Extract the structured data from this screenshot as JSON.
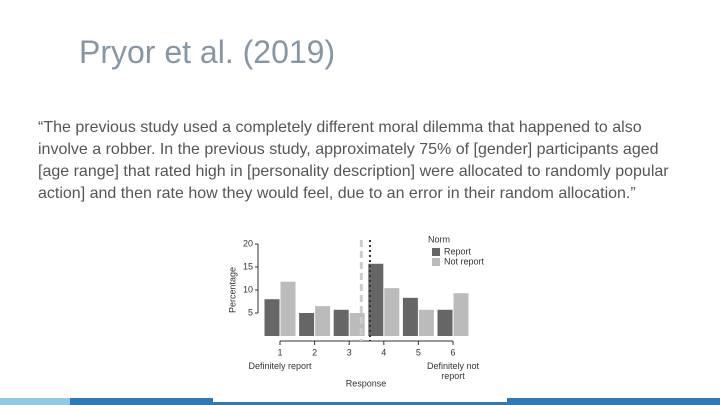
{
  "slide": {
    "title": "Pryor et al. (2019)",
    "quote": "“The previous study used a completely different moral dilemma that happened to also involve a robber. In the previous study, approximately 75% of [gender] participants aged [age range] that rated high in [personality description] were allocated to randomly popular action] and then rate how they would feel, due to an error in their random allocation.”"
  },
  "chart_data": {
    "type": "bar",
    "x_label": "Response",
    "y_label": "Percentage",
    "categories": [
      "1",
      "2",
      "3",
      "4",
      "5",
      "6"
    ],
    "annotations": [
      "Definitely report",
      "Definitely not report"
    ],
    "legend_title": "Norm",
    "series": [
      {
        "name": "Report",
        "color": "#666666",
        "values": [
          8,
          5,
          5.7,
          15.7,
          8.3,
          5.7
        ]
      },
      {
        "name": "Not report",
        "color": "#bbbbbb",
        "values": [
          11.8,
          6.5,
          5,
          10.4,
          5.7,
          9.3
        ]
      }
    ],
    "reference_lines": [
      {
        "x": 3.35,
        "color": "#cccccc",
        "style": "dashed"
      },
      {
        "x": 3.6,
        "color": "#333333",
        "style": "dotted"
      }
    ],
    "ylim": [
      0,
      20
    ],
    "yticks": [
      5,
      10,
      15,
      20
    ]
  }
}
